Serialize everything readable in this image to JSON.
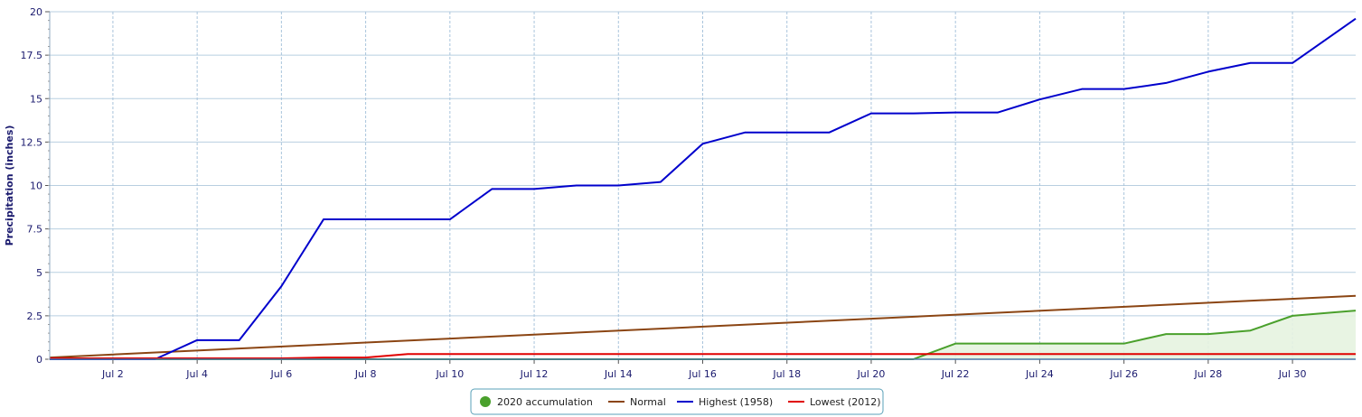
{
  "chart_data": {
    "type": "line",
    "ylabel": "Precipitation (inches)",
    "xlabel": "",
    "ylim": [
      0,
      20
    ],
    "y_ticks": [
      "0",
      "2.5",
      "5",
      "7.5",
      "10",
      "12.5",
      "15",
      "17.5",
      "20"
    ],
    "x_ticks": [
      "Jul 2",
      "Jul 4",
      "Jul 6",
      "Jul 8",
      "Jul 10",
      "Jul 12",
      "Jul 14",
      "Jul 16",
      "Jul 18",
      "Jul 20",
      "Jul 22",
      "Jul 24",
      "Jul 26",
      "Jul 28",
      "Jul 30"
    ],
    "x_domain_days": [
      1,
      31
    ],
    "grid": true,
    "legend_position": "bottom-center",
    "series": [
      {
        "name": "2020 accumulation",
        "color": "#4aa02c",
        "fill": "#e6f3e0",
        "x": [
          1,
          2,
          3,
          4,
          5,
          6,
          7,
          8,
          9,
          10,
          11,
          12,
          13,
          14,
          15,
          16,
          17,
          18,
          19,
          20,
          21,
          22,
          23,
          24,
          25,
          26,
          27,
          28,
          29,
          30,
          31
        ],
        "values": [
          0,
          0,
          0,
          0,
          0,
          0,
          0,
          0,
          0,
          0,
          0,
          0,
          0,
          0,
          0,
          0,
          0,
          0,
          0,
          0,
          0,
          0.9,
          0.9,
          0.9,
          0.9,
          0.9,
          1.45,
          1.45,
          1.65,
          2.5,
          2.7
        ]
      },
      {
        "name": "Normal",
        "color": "#8b4513",
        "x": [
          1,
          31
        ],
        "values": [
          0.1,
          3.65
        ]
      },
      {
        "name": "Highest (1958)",
        "color": "#0000cc",
        "x": [
          1,
          2,
          3,
          4,
          5,
          6,
          7,
          8,
          9,
          10,
          11,
          12,
          13,
          14,
          15,
          16,
          17,
          18,
          19,
          20,
          21,
          22,
          23,
          24,
          25,
          26,
          27,
          28,
          29,
          30,
          31
        ],
        "values": [
          0,
          0,
          0,
          1.1,
          1.1,
          4.2,
          8.05,
          8.05,
          8.05,
          8.05,
          9.8,
          9.8,
          10.0,
          10.0,
          10.2,
          12.4,
          13.05,
          13.05,
          13.05,
          14.15,
          14.15,
          14.2,
          14.2,
          14.95,
          15.55,
          15.55,
          15.9,
          16.55,
          17.05,
          17.05,
          18.75
        ]
      },
      {
        "name": "Lowest (2012)",
        "color": "#e00000",
        "x": [
          1,
          2,
          3,
          4,
          5,
          6,
          7,
          8,
          9,
          10,
          11,
          12,
          13,
          14,
          15,
          16,
          17,
          18,
          19,
          20,
          21,
          22,
          23,
          24,
          25,
          26,
          27,
          28,
          29,
          30,
          31
        ],
        "values": [
          0.05,
          0.05,
          0.05,
          0.05,
          0.05,
          0.05,
          0.1,
          0.1,
          0.3,
          0.3,
          0.3,
          0.3,
          0.3,
          0.3,
          0.3,
          0.3,
          0.3,
          0.3,
          0.3,
          0.3,
          0.3,
          0.3,
          0.3,
          0.3,
          0.3,
          0.3,
          0.3,
          0.3,
          0.3,
          0.3,
          0.3
        ]
      }
    ]
  }
}
